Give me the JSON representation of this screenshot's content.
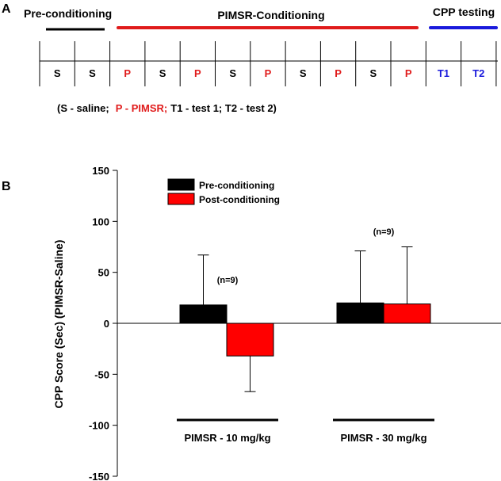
{
  "panel_a": {
    "label": "A",
    "phases": [
      {
        "name": "Pre-conditioning",
        "color": "#000000"
      },
      {
        "name": "PIMSR-Conditioning",
        "color": "#e01b1b"
      },
      {
        "name": "CPP testing",
        "color": "#1a1adc"
      }
    ],
    "sessions": [
      {
        "code": "S",
        "color": "#000000"
      },
      {
        "code": "S",
        "color": "#000000"
      },
      {
        "code": "P",
        "color": "#e01b1b"
      },
      {
        "code": "S",
        "color": "#000000"
      },
      {
        "code": "P",
        "color": "#e01b1b"
      },
      {
        "code": "S",
        "color": "#000000"
      },
      {
        "code": "P",
        "color": "#e01b1b"
      },
      {
        "code": "S",
        "color": "#000000"
      },
      {
        "code": "P",
        "color": "#e01b1b"
      },
      {
        "code": "S",
        "color": "#000000"
      },
      {
        "code": "P",
        "color": "#e01b1b"
      },
      {
        "code": "T1",
        "color": "#1a1adc"
      },
      {
        "code": "T2",
        "color": "#1a1adc"
      }
    ],
    "key": {
      "open": "(S - saline;",
      "pimsr": "P - PIMSR;",
      "tests": "T1 - test 1; T2 - test 2)"
    }
  },
  "chart_data": {
    "panel_label": "B",
    "type": "bar",
    "ylabel": "CPP Score (Sec) (PIMSR-Saline)",
    "ylim": [
      -150,
      150
    ],
    "yticks": [
      -150,
      -100,
      -50,
      0,
      50,
      100,
      150
    ],
    "categories": [
      "PIMSR - 10 mg/kg",
      "PIMSR - 30 mg/kg"
    ],
    "group_annotations": [
      "(n=9)",
      "(n=9)"
    ],
    "legend_position": "top-left",
    "series": [
      {
        "name": "Pre-conditioning",
        "color": "#000000",
        "values": [
          18,
          20
        ],
        "errors": [
          49,
          51
        ]
      },
      {
        "name": "Post-conditioning",
        "color": "#ff0000",
        "values": [
          -32,
          19
        ],
        "errors": [
          35,
          56
        ]
      }
    ]
  }
}
